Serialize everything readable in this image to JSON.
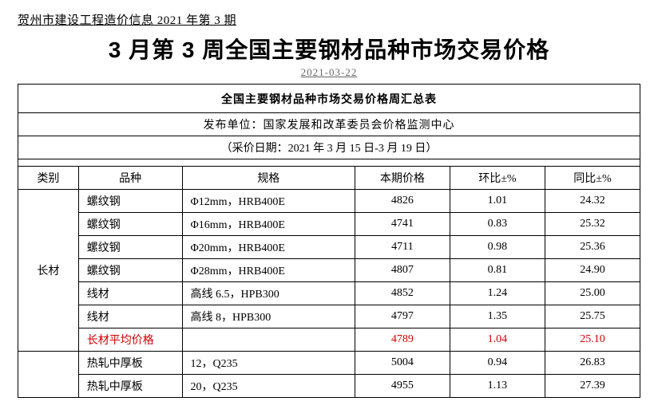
{
  "header": "贺州市建设工程造价信息 2021 年第 3 期",
  "title": "3 月第 3 周全国主要钢材品种市场交易价格",
  "date": "2021-03-22",
  "table": {
    "title": "全国主要钢材品种市场交易价格周汇总表",
    "publisher": "发布单位：国家发展和改革委员会价格监测中心",
    "collect": "（采价日期：2021 年 3 月 15 日-3 月 19 日）",
    "columns": [
      "类别",
      "品种",
      "规格",
      "本期价格",
      "环比±%",
      "同比±%"
    ],
    "cat1": "长材",
    "rows": [
      {
        "name": "螺纹钢",
        "spec": "Φ12mm，HRB400E",
        "price": "4826",
        "mom": "1.01",
        "yoy": "24.32"
      },
      {
        "name": "螺纹钢",
        "spec": "Φ16mm，HRB400E",
        "price": "4741",
        "mom": "0.83",
        "yoy": "25.32"
      },
      {
        "name": "螺纹钢",
        "spec": "Φ20mm，HRB400E",
        "price": "4711",
        "mom": "0.98",
        "yoy": "25.36"
      },
      {
        "name": "螺纹钢",
        "spec": "Φ28mm，HRB400E",
        "price": "4807",
        "mom": "0.81",
        "yoy": "24.90"
      },
      {
        "name": "线材",
        "spec": "高线 6.5，HPB300",
        "price": "4852",
        "mom": "1.24",
        "yoy": "25.00"
      },
      {
        "name": "线材",
        "spec": "高线 8，HPB300",
        "price": "4797",
        "mom": "1.35",
        "yoy": "25.75"
      }
    ],
    "avg1": {
      "name": "长材平均价格",
      "spec": "",
      "price": "4789",
      "mom": "1.04",
      "yoy": "25.10"
    },
    "rows2": [
      {
        "name": "热轧中厚板",
        "spec": "12，Q235",
        "price": "5004",
        "mom": "0.94",
        "yoy": "26.83"
      },
      {
        "name": "热轧中厚板",
        "spec": "20，Q235",
        "price": "4955",
        "mom": "1.13",
        "yoy": "27.39"
      }
    ]
  }
}
